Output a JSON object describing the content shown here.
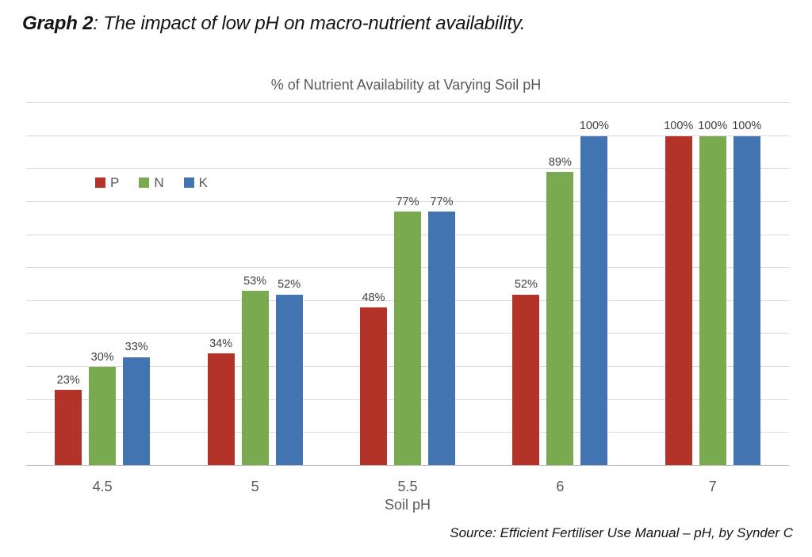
{
  "page": {
    "heading_prefix": "Graph 2",
    "heading_rest": ": The impact of low pH on macro-nutrient availability.",
    "source": "Source: Efficient Fertiliser Use Manual – pH, by Synder C"
  },
  "chart_data": {
    "type": "bar",
    "title": "% of Nutrient Availability at Varying Soil pH",
    "xlabel": "Soil pH",
    "ylabel": "",
    "categories": [
      "4.5",
      "5",
      "5.5",
      "6",
      "7"
    ],
    "series": [
      {
        "name": "P",
        "color": "#b43328",
        "values": [
          23,
          34,
          48,
          52,
          100
        ]
      },
      {
        "name": "N",
        "color": "#7aaa50",
        "values": [
          30,
          53,
          77,
          89,
          100
        ]
      },
      {
        "name": "K",
        "color": "#4274b2",
        "values": [
          33,
          52,
          77,
          100,
          100
        ]
      }
    ],
    "value_label_suffix": "%",
    "ylim": [
      0,
      110
    ],
    "grid_step": 10,
    "grid": true,
    "legend_position": "top-left-inside",
    "colors": {
      "gridline": "#d9d9d9",
      "baseline": "#bfbfbf",
      "axis_text": "#595959",
      "value_label_text": "#404040"
    }
  }
}
